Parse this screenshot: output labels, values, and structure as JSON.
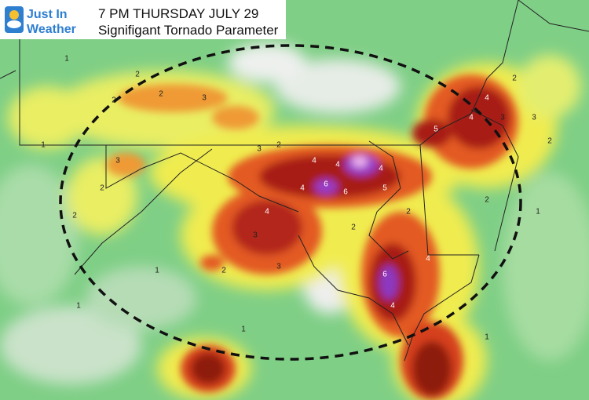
{
  "logo": {
    "line1": "Just In",
    "line2": "Weather"
  },
  "header": {
    "time": "7 PM THURSDAY JULY 29",
    "product": "Signifigant Tornado Parameter"
  },
  "map": {
    "contour_labels": [
      1,
      2,
      2,
      3,
      2,
      1,
      3,
      2,
      2,
      3,
      2,
      4,
      4,
      4,
      6,
      6,
      4,
      5,
      5,
      4,
      4,
      3,
      2,
      3,
      2,
      2,
      4,
      3,
      3,
      2,
      2,
      2,
      6,
      4,
      4,
      1,
      1,
      1,
      1,
      1
    ]
  }
}
